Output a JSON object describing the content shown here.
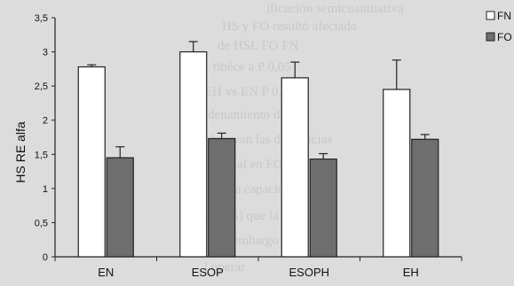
{
  "chart_data": {
    "type": "bar",
    "title": "",
    "xlabel": "",
    "ylabel": "HS RE alfa",
    "ylim": [
      0,
      3.5
    ],
    "yticks": [
      "0",
      "0,5",
      "1",
      "1,5",
      "2",
      "2,5",
      "3",
      "3,5"
    ],
    "categories": [
      "EN",
      "ESOP",
      "ESOPH",
      "EH"
    ],
    "series": [
      {
        "name": "FN",
        "values": [
          2.78,
          3.0,
          2.62,
          2.45
        ],
        "errors": [
          0.03,
          0.15,
          0.23,
          0.43
        ],
        "fill": "#ffffff"
      },
      {
        "name": "FO",
        "values": [
          1.45,
          1.73,
          1.43,
          1.72
        ],
        "errors": [
          0.16,
          0.08,
          0.08,
          0.07
        ],
        "fill": "#6e6e6e"
      }
    ],
    "legend_position": "top-right",
    "grid": false
  },
  "colors": {
    "background": "#dcdcdc",
    "axis": "#222222",
    "bar_outline": "#222222"
  }
}
